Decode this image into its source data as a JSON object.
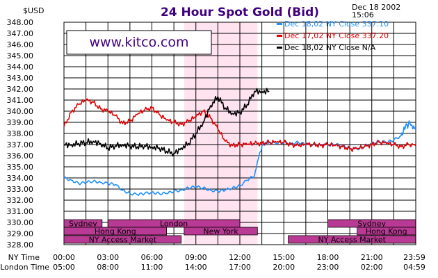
{
  "chart_data": {
    "type": "line",
    "title": "24 Hour Spot Gold (Bid)",
    "ylabel": "$USD",
    "timestamp": [
      "Dec 18 2002",
      "15:06"
    ],
    "watermark": "www.kitco.com",
    "ylim": [
      328,
      348
    ],
    "yticks": [
      348,
      347,
      346,
      345,
      344,
      343,
      342,
      341,
      340,
      339,
      338,
      337,
      336,
      335,
      334,
      333,
      332,
      331,
      330,
      329,
      328
    ],
    "ny_time_label": "NY Time",
    "london_time_label": "London Time",
    "ny_ticks": [
      "00:00",
      "03:00",
      "06:00",
      "09:00",
      "12:00",
      "15:00",
      "18:00",
      "21:00",
      "23:59"
    ],
    "london_ticks": [
      "05:00",
      "08:00",
      "11:00",
      "14:00",
      "17:00",
      "20:00",
      "23:00",
      "02:00",
      "04:59"
    ],
    "ny_session_shade": [
      8.2,
      13.2
    ],
    "colors": {
      "shade": "#ffe4f0",
      "market": "#b93a94",
      "series_blue": "#1e90ff",
      "series_red": "#e00000",
      "series_black": "#000000",
      "title": "#400080"
    },
    "markets": [
      {
        "label": "Sydney",
        "row": 0,
        "start": 0.0,
        "end": 2.6
      },
      {
        "label": "London",
        "row": 0,
        "start": 3.0,
        "end": 12.0
      },
      {
        "label": "Sydney",
        "row": 0,
        "start": 18.0,
        "end": 23.99
      },
      {
        "label": "Hong Kong",
        "row": 1,
        "start": 0.0,
        "end": 7.0
      },
      {
        "label": "New York",
        "row": 1,
        "start": 8.2,
        "end": 13.2
      },
      {
        "label": "Hong Kong",
        "row": 1,
        "start": 20.0,
        "end": 23.99
      },
      {
        "label": "NY Access Market",
        "row": 2,
        "start": 0.0,
        "end": 8.0
      },
      {
        "label": "NY Access Market",
        "row": 2,
        "start": 15.3,
        "end": 23.99
      }
    ],
    "series": [
      {
        "name": "Dec 18,02 NY Close 337.10",
        "color": "#1e90ff",
        "x": [
          0.0,
          0.5,
          1.0,
          1.5,
          2.0,
          2.5,
          3.0,
          3.5,
          4.0,
          4.5,
          5.0,
          5.5,
          6.0,
          6.5,
          7.0,
          7.5,
          8.0,
          8.5,
          9.0,
          9.5,
          10.0,
          10.5,
          11.0,
          11.5,
          12.0,
          12.5,
          13.0,
          13.3,
          13.6,
          14.0,
          14.5,
          15.0,
          15.5,
          16.0,
          16.5,
          17.0,
          17.5,
          18.0,
          18.5,
          19.0,
          19.5,
          20.0,
          20.5,
          21.0,
          21.5,
          22.0,
          22.5,
          23.0,
          23.3,
          23.6,
          23.99
        ],
        "y": [
          334.0,
          333.8,
          333.5,
          333.6,
          333.7,
          333.6,
          333.5,
          333.4,
          332.9,
          332.6,
          332.5,
          332.6,
          332.7,
          332.6,
          332.6,
          332.8,
          332.9,
          333.1,
          333.2,
          333.1,
          332.9,
          332.8,
          332.9,
          333.1,
          333.3,
          333.8,
          334.2,
          336.0,
          337.1,
          337.2,
          337.1,
          337.2,
          337.1,
          337.2,
          337.0,
          337.0,
          337.0,
          337.0,
          337.0,
          336.9,
          336.7,
          336.6,
          336.8,
          337.1,
          337.3,
          337.2,
          337.4,
          337.8,
          338.6,
          338.9,
          338.5
        ]
      },
      {
        "name": "Dec 17,02 NY Close 337.20",
        "color": "#e00000",
        "x": [
          0.0,
          0.5,
          1.0,
          1.5,
          2.0,
          2.5,
          3.0,
          3.5,
          4.0,
          4.5,
          5.0,
          5.5,
          6.0,
          6.5,
          7.0,
          7.5,
          8.0,
          8.5,
          9.0,
          9.5,
          10.0,
          10.5,
          11.0,
          11.5,
          12.0,
          12.5,
          13.0,
          13.5,
          14.0,
          14.5,
          15.0,
          15.5,
          16.0,
          16.5,
          17.0,
          17.5,
          18.0,
          18.5,
          19.0,
          19.5,
          20.0,
          20.5,
          21.0,
          21.5,
          22.0,
          22.5,
          23.0,
          23.5,
          23.99
        ],
        "y": [
          338.6,
          339.9,
          340.6,
          341.0,
          340.8,
          340.2,
          340.0,
          339.6,
          338.9,
          339.1,
          339.7,
          340.1,
          340.3,
          339.7,
          339.2,
          339.0,
          338.8,
          339.1,
          339.5,
          340.0,
          339.4,
          338.4,
          337.3,
          336.9,
          337.0,
          337.0,
          337.1,
          337.1,
          337.2,
          337.2,
          337.2,
          337.0,
          336.9,
          337.0,
          337.0,
          336.9,
          337.0,
          336.9,
          336.8,
          336.6,
          336.6,
          336.8,
          337.0,
          337.2,
          337.1,
          337.0,
          336.8,
          337.0,
          336.9
        ]
      },
      {
        "name": "Dec 18,02 NY Close N/A",
        "color": "#000000",
        "x": [
          0.0,
          0.5,
          1.0,
          1.5,
          2.0,
          2.5,
          3.0,
          3.5,
          4.0,
          4.5,
          5.0,
          5.5,
          6.0,
          6.5,
          7.0,
          7.5,
          8.0,
          8.5,
          9.0,
          9.5,
          10.0,
          10.5,
          11.0,
          11.5,
          12.0,
          12.5,
          13.0,
          13.5,
          14.0
        ],
        "y": [
          337.0,
          337.0,
          337.1,
          337.2,
          337.3,
          337.1,
          336.7,
          336.9,
          337.0,
          336.9,
          336.8,
          336.9,
          336.8,
          336.7,
          336.4,
          336.2,
          336.7,
          337.1,
          338.0,
          339.0,
          340.5,
          341.3,
          340.3,
          339.8,
          339.9,
          340.6,
          341.8,
          341.8,
          341.8
        ]
      }
    ]
  }
}
